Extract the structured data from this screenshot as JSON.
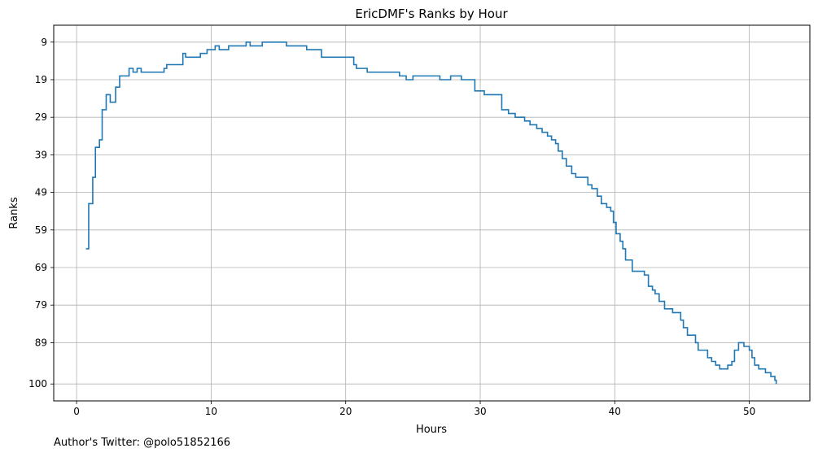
{
  "footer": {
    "credit": "Author's Twitter: @polo51852166"
  },
  "chart_data": {
    "type": "line",
    "drawstyle": "steps-post",
    "title": "EricDMF's Ranks by Hour",
    "xlabel": "Hours",
    "ylabel": "Ranks",
    "xlim": [
      -1.7,
      54.5
    ],
    "ylim": [
      104.5,
      4.5
    ],
    "y_inverted": true,
    "grid": true,
    "line_color": "#1f77b4",
    "xticks": [
      0,
      10,
      20,
      30,
      40,
      50
    ],
    "xtick_labels": [
      "0",
      "10",
      "20",
      "30",
      "40",
      "50"
    ],
    "yticks": [
      9,
      19,
      29,
      39,
      49,
      59,
      69,
      79,
      89,
      100
    ],
    "ytick_labels": [
      "9",
      "19",
      "29",
      "39",
      "49",
      "59",
      "69",
      "79",
      "89",
      "100"
    ],
    "series": [
      {
        "x": [
          0.7,
          0.9,
          1.2,
          1.4,
          1.7,
          1.9,
          2.2,
          2.5,
          2.9,
          3.2,
          3.9,
          4.2,
          4.5,
          4.8,
          6.5,
          6.7,
          7.9,
          8.1,
          9.2,
          9.7,
          10.3,
          10.6,
          11.3,
          12.6,
          12.9,
          13.8,
          15.6,
          17.1,
          18.2,
          20.6,
          20.8,
          21.6,
          24.0,
          24.5,
          25.0,
          27.0,
          27.8,
          28.6,
          29.6,
          30.3,
          31.6,
          32.1,
          32.6,
          33.3,
          33.7,
          34.2,
          34.6,
          35.0,
          35.3,
          35.6,
          35.8,
          36.1,
          36.4,
          36.8,
          37.1,
          38.0,
          38.3,
          38.7,
          39.0,
          39.4,
          39.7,
          39.9,
          40.1,
          40.4,
          40.6,
          40.8,
          41.3,
          42.2,
          42.5,
          42.8,
          43.0,
          43.3,
          43.7,
          44.3,
          44.9,
          45.1,
          45.4,
          46.0,
          46.2,
          46.9,
          47.2,
          47.5,
          47.8,
          48.4,
          48.7,
          48.9,
          49.2,
          49.6,
          50.0,
          50.2,
          50.4,
          50.7,
          51.2,
          51.6,
          51.9,
          52.0
        ],
        "y": [
          64,
          52,
          45,
          37,
          35,
          27,
          23,
          25,
          21,
          18,
          16,
          17,
          16,
          17,
          16,
          15,
          12,
          13,
          12,
          11,
          10,
          11,
          10,
          9,
          10,
          9,
          10,
          11,
          13,
          15,
          16,
          17,
          18,
          19,
          18,
          19,
          18,
          19,
          22,
          23,
          27,
          28,
          29,
          30,
          31,
          32,
          33,
          34,
          35,
          36,
          38,
          40,
          42,
          44,
          45,
          47,
          48,
          50,
          52,
          53,
          54,
          57,
          60,
          62,
          64,
          67,
          70,
          71,
          74,
          75,
          76,
          78,
          80,
          81,
          83,
          85,
          87,
          89,
          91,
          93,
          94,
          95,
          96,
          95,
          94,
          91,
          89,
          90,
          91,
          93,
          95,
          96,
          97,
          98,
          99,
          100
        ]
      }
    ]
  }
}
